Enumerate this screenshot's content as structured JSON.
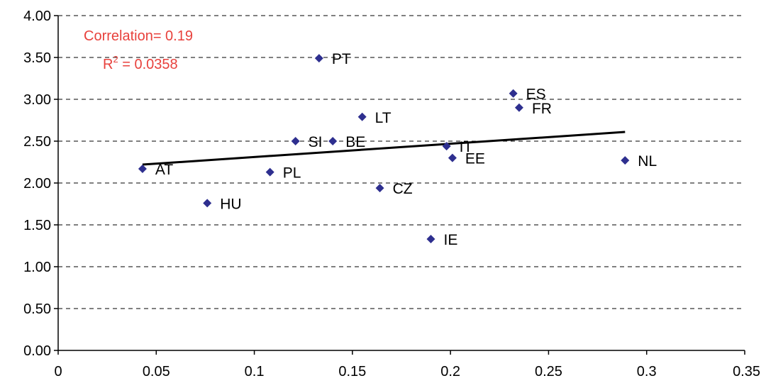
{
  "chart_data": {
    "type": "scatter",
    "title": "",
    "xlabel": "",
    "ylabel": "",
    "xlim": [
      0,
      0.35
    ],
    "ylim": [
      0,
      4.0
    ],
    "x_ticks": [
      {
        "value": 0,
        "label": "0"
      },
      {
        "value": 0.05,
        "label": "0.05"
      },
      {
        "value": 0.1,
        "label": "0.1"
      },
      {
        "value": 0.15,
        "label": "0.15"
      },
      {
        "value": 0.2,
        "label": "0.2"
      },
      {
        "value": 0.25,
        "label": "0.25"
      },
      {
        "value": 0.3,
        "label": "0.3"
      },
      {
        "value": 0.35,
        "label": "0.35"
      }
    ],
    "y_ticks": [
      {
        "value": 0,
        "label": "0.00"
      },
      {
        "value": 0.5,
        "label": "0.50"
      },
      {
        "value": 1.0,
        "label": "1.00"
      },
      {
        "value": 1.5,
        "label": "1.50"
      },
      {
        "value": 2.0,
        "label": "2.00"
      },
      {
        "value": 2.5,
        "label": "2.50"
      },
      {
        "value": 3.0,
        "label": "3.00"
      },
      {
        "value": 3.5,
        "label": "3.50"
      },
      {
        "value": 4.0,
        "label": "4.00"
      }
    ],
    "grid": "horizontal-dashed",
    "points": [
      {
        "label": "AT",
        "x": 0.043,
        "y": 2.17
      },
      {
        "label": "HU",
        "x": 0.076,
        "y": 1.76
      },
      {
        "label": "PL",
        "x": 0.108,
        "y": 2.13
      },
      {
        "label": "SI",
        "x": 0.121,
        "y": 2.5
      },
      {
        "label": "PT",
        "x": 0.133,
        "y": 3.49
      },
      {
        "label": "BE",
        "x": 0.14,
        "y": 2.5
      },
      {
        "label": "LT",
        "x": 0.155,
        "y": 2.79
      },
      {
        "label": "CZ",
        "x": 0.164,
        "y": 1.94
      },
      {
        "label": "IE",
        "x": 0.19,
        "y": 1.33
      },
      {
        "label": "IT",
        "x": 0.198,
        "y": 2.44
      },
      {
        "label": "EE",
        "x": 0.201,
        "y": 2.3
      },
      {
        "label": "ES",
        "x": 0.232,
        "y": 3.07
      },
      {
        "label": "FR",
        "x": 0.235,
        "y": 2.9
      },
      {
        "label": "NL",
        "x": 0.289,
        "y": 2.27
      }
    ],
    "trendline": {
      "x": [
        0.043,
        0.289
      ],
      "y": [
        2.22,
        2.61
      ]
    },
    "annotations": {
      "correlation": "Correlation= 0.19",
      "r2_prefix": "R",
      "r2_exp": "2",
      "r2_suffix": " = 0.0358"
    },
    "colors": {
      "marker": "#2e2f8f",
      "trendline": "#000000",
      "annotation": "#e8413c",
      "grid": "#000000",
      "axis": "#000000"
    }
  }
}
